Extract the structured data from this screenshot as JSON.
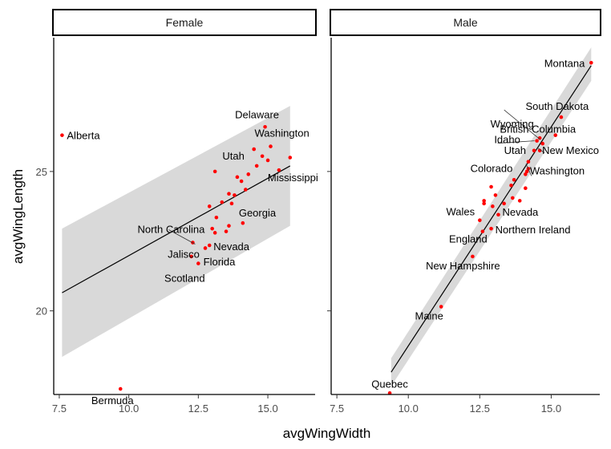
{
  "chart_data": {
    "type": "scatter",
    "xlabel": "avgWingWidth",
    "ylabel": "avgWingLength",
    "xlim": [
      7.3,
      16.7
    ],
    "ylim": [
      17.0,
      29.8
    ],
    "x_ticks": [
      7.5,
      10.0,
      12.5,
      15.0
    ],
    "y_ticks": [
      20,
      25
    ],
    "x_tick_labels": [
      "7.5",
      "10.0",
      "12.5",
      "15.0"
    ],
    "y_tick_labels": [
      "20",
      "25"
    ],
    "point_color": "#ff0000",
    "panel_background": "#ffffff",
    "band_color": "#d9d9d9",
    "grid": false,
    "panels": [
      {
        "label": "Female",
        "fit": {
          "x": [
            7.6,
            15.8
          ],
          "y": [
            20.65,
            25.2
          ],
          "se_low": [
            18.35,
            23.05
          ],
          "se_high": [
            22.95,
            27.35
          ]
        },
        "points": [
          {
            "x": 7.6,
            "y": 26.3,
            "label": "Alberta"
          },
          {
            "x": 9.7,
            "y": 17.2,
            "label": "Bermuda"
          },
          {
            "x": 13.1,
            "y": 25.0
          },
          {
            "x": 14.9,
            "y": 26.6,
            "label": "Delaware"
          },
          {
            "x": 15.1,
            "y": 25.9,
            "label": "Washington"
          },
          {
            "x": 14.5,
            "y": 25.8
          },
          {
            "x": 14.8,
            "y": 25.55
          },
          {
            "x": 15.0,
            "y": 25.4
          },
          {
            "x": 14.6,
            "y": 25.2,
            "label": "Utah"
          },
          {
            "x": 15.8,
            "y": 25.5
          },
          {
            "x": 15.4,
            "y": 25.05,
            "label": "Mississippi"
          },
          {
            "x": 14.3,
            "y": 24.9
          },
          {
            "x": 13.9,
            "y": 24.8
          },
          {
            "x": 14.05,
            "y": 24.65
          },
          {
            "x": 14.2,
            "y": 24.35
          },
          {
            "x": 13.6,
            "y": 24.2
          },
          {
            "x": 13.8,
            "y": 24.15
          },
          {
            "x": 13.35,
            "y": 23.9
          },
          {
            "x": 13.7,
            "y": 23.85
          },
          {
            "x": 12.9,
            "y": 23.75
          },
          {
            "x": 14.1,
            "y": 23.15,
            "label": "Georgia"
          },
          {
            "x": 13.6,
            "y": 23.05
          },
          {
            "x": 13.15,
            "y": 23.35
          },
          {
            "x": 13.0,
            "y": 22.95
          },
          {
            "x": 13.1,
            "y": 22.8
          },
          {
            "x": 13.5,
            "y": 22.85
          },
          {
            "x": 12.3,
            "y": 22.45,
            "label": "North Carolina"
          },
          {
            "x": 12.9,
            "y": 22.35,
            "label": "Nevada"
          },
          {
            "x": 12.75,
            "y": 22.25,
            "label": "Jalisco"
          },
          {
            "x": 12.25,
            "y": 21.95,
            "label": "Florida"
          },
          {
            "x": 12.5,
            "y": 21.7,
            "label": "Scotland"
          }
        ]
      },
      {
        "label": "Male",
        "fit": {
          "x": [
            9.4,
            16.4
          ],
          "y": [
            17.8,
            28.8
          ],
          "se_low": [
            17.3,
            28.25
          ],
          "se_high": [
            18.3,
            29.45
          ]
        },
        "points": [
          {
            "x": 16.4,
            "y": 28.9,
            "label": "Montana"
          },
          {
            "x": 15.35,
            "y": 26.95,
            "label": "South Dakota"
          },
          {
            "x": 15.15,
            "y": 26.3,
            "label": "British Columbia"
          },
          {
            "x": 14.6,
            "y": 26.2
          },
          {
            "x": 14.7,
            "y": 26.0,
            "label": "Wyoming"
          },
          {
            "x": 14.5,
            "y": 26.1,
            "label": "Idaho"
          },
          {
            "x": 14.4,
            "y": 25.75,
            "label": "Utah"
          },
          {
            "x": 14.6,
            "y": 25.75,
            "label": "New Mexico"
          },
          {
            "x": 14.2,
            "y": 25.35
          },
          {
            "x": 14.2,
            "y": 25.1,
            "label": "Washington"
          },
          {
            "x": 14.1,
            "y": 24.9,
            "label": "Colorado"
          },
          {
            "x": 14.15,
            "y": 25.0
          },
          {
            "x": 13.7,
            "y": 24.7
          },
          {
            "x": 13.6,
            "y": 24.5
          },
          {
            "x": 12.9,
            "y": 24.45
          },
          {
            "x": 14.1,
            "y": 24.4
          },
          {
            "x": 13.05,
            "y": 24.15
          },
          {
            "x": 13.65,
            "y": 24.05
          },
          {
            "x": 12.65,
            "y": 23.95
          },
          {
            "x": 12.65,
            "y": 23.85
          },
          {
            "x": 13.35,
            "y": 23.85
          },
          {
            "x": 13.9,
            "y": 23.95
          },
          {
            "x": 12.95,
            "y": 23.75
          },
          {
            "x": 13.15,
            "y": 23.45,
            "label": "Nevada"
          },
          {
            "x": 12.5,
            "y": 23.25,
            "label": "Wales"
          },
          {
            "x": 12.9,
            "y": 22.95,
            "label": "Northern Ireland"
          },
          {
            "x": 12.6,
            "y": 22.85,
            "label": "England"
          },
          {
            "x": 12.25,
            "y": 21.95,
            "label": "New Hampshire"
          },
          {
            "x": 11.15,
            "y": 20.15,
            "label": "Maine"
          },
          {
            "x": 9.35,
            "y": 17.05,
            "label": "Quebec"
          }
        ]
      }
    ]
  }
}
